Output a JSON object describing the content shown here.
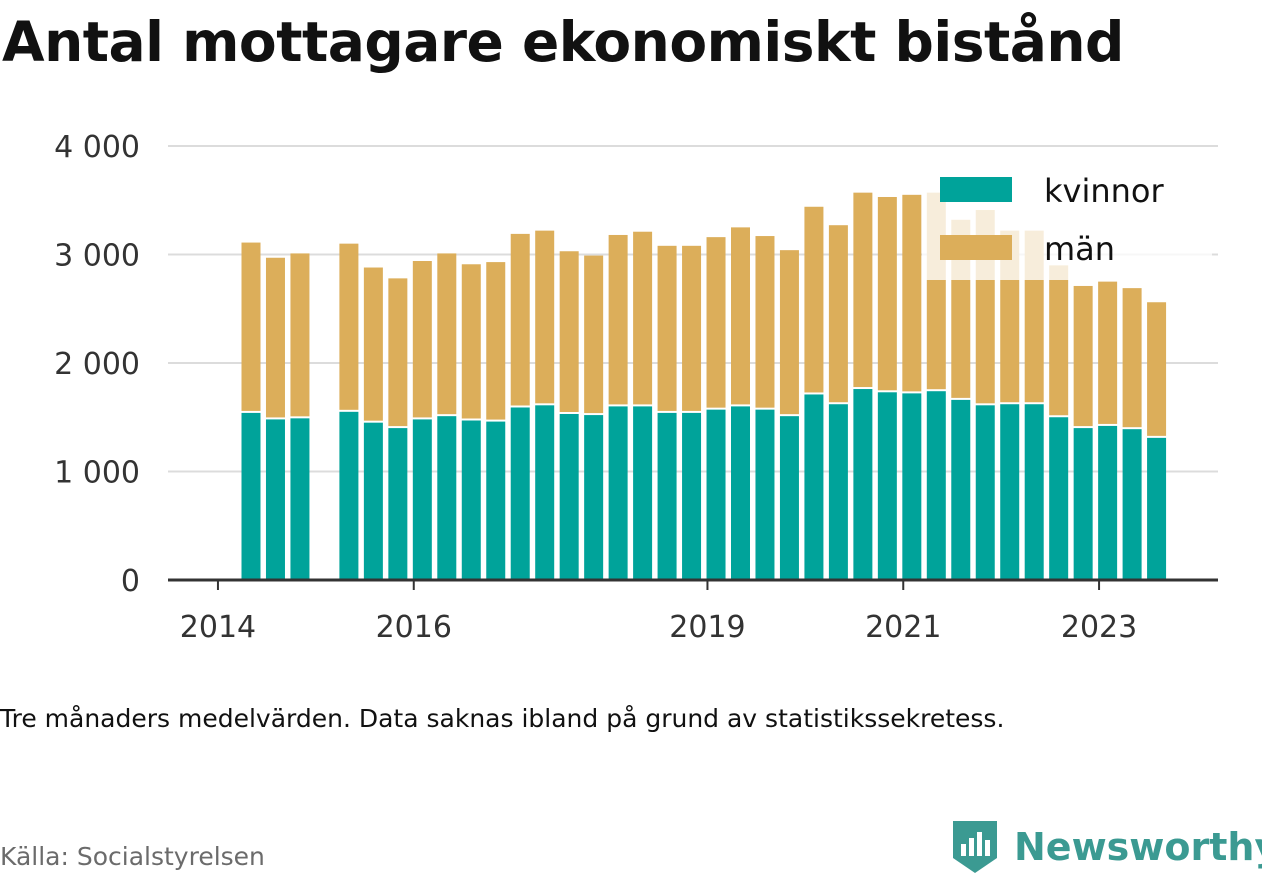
{
  "title": "Antal mottagare ekonomiskt bistånd",
  "note": "Tre månaders medelvärden. Data saknas ibland på grund av statistikssekretess.",
  "source": "Källa: Socialstyrelsen",
  "brand": {
    "name": "Newsworthy",
    "icon": "newsworthy-logo-icon",
    "color": "#3b9a92"
  },
  "chart_data": {
    "type": "bar",
    "stacked": true,
    "xlabel": "",
    "ylabel": "",
    "ylim": [
      0,
      4000
    ],
    "yticks": [
      0,
      1000,
      2000,
      3000,
      4000
    ],
    "ytick_labels": [
      "0",
      "1 000",
      "2 000",
      "3 000",
      "4 000"
    ],
    "xticks": [
      "2014",
      "2016",
      "2019",
      "2021",
      "2023"
    ],
    "grid": true,
    "legend_position": "top-right",
    "missing_periods": [
      3
    ],
    "periods": [
      "2014 Q2",
      "2014 Q3",
      "2014 Q4",
      "2015 Q1",
      "2015 Q2",
      "2015 Q3",
      "2015 Q4",
      "2016 Q1",
      "2016 Q2",
      "2016 Q3",
      "2016 Q4",
      "2017 Q1",
      "2017 Q2",
      "2017 Q3",
      "2017 Q4",
      "2018 Q1",
      "2018 Q2",
      "2018 Q3",
      "2018 Q4",
      "2019 Q1",
      "2019 Q2",
      "2019 Q3",
      "2019 Q4",
      "2020 Q1",
      "2020 Q2",
      "2020 Q3",
      "2020 Q4",
      "2021 Q1",
      "2021 Q2",
      "2021 Q3",
      "2021 Q4",
      "2022 Q1",
      "2022 Q2",
      "2022 Q3",
      "2022 Q4",
      "2023 Q1",
      "2023 Q2",
      "2023 Q3",
      "2023 Q4"
    ],
    "series": [
      {
        "name": "kvinnor",
        "color": "#00a39a",
        "values": [
          1540,
          1480,
          1490,
          null,
          1550,
          1450,
          1400,
          1480,
          1510,
          1470,
          1460,
          1590,
          1610,
          1530,
          1520,
          1600,
          1600,
          1540,
          1540,
          1570,
          1600,
          1570,
          1510,
          1710,
          1620,
          1760,
          1730,
          1720,
          1740,
          1660,
          1610,
          1620,
          1620,
          1500,
          1400,
          1420,
          1390,
          1310,
          null
        ]
      },
      {
        "name": "män",
        "color": "#dcae5a",
        "values": [
          1570,
          1490,
          1520,
          null,
          1550,
          1430,
          1380,
          1460,
          1500,
          1440,
          1470,
          1600,
          1610,
          1500,
          1470,
          1580,
          1610,
          1540,
          1540,
          1590,
          1650,
          1600,
          1530,
          1730,
          1650,
          1810,
          1800,
          1830,
          1830,
          1660,
          1800,
          1600,
          1600,
          1400,
          1310,
          1330,
          1300,
          1250,
          null
        ]
      }
    ]
  }
}
